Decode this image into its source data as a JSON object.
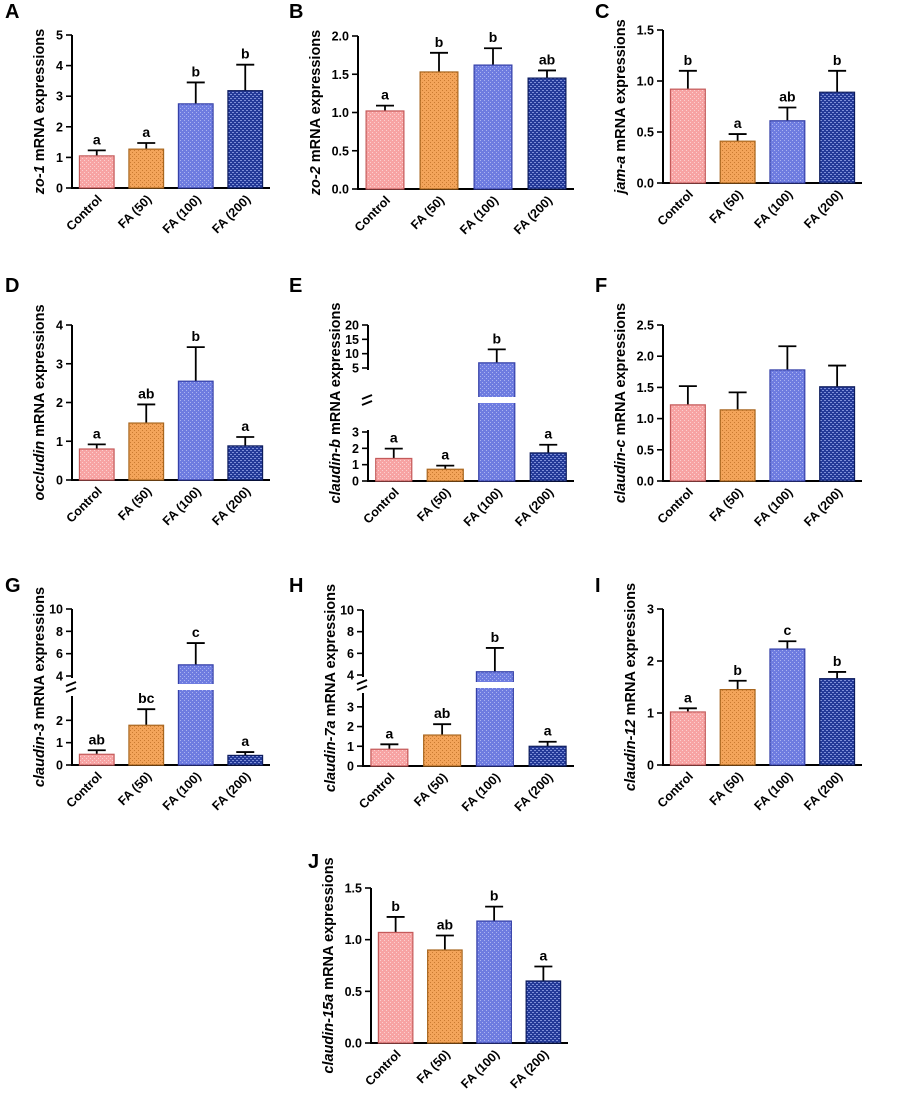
{
  "figure": {
    "colors": {
      "control": "#f7a3a3",
      "fa50": "#f3a45a",
      "fa100": "#6e7ce0",
      "fa200": "#243a98",
      "axis": "#000000"
    },
    "y_label_suffix": " mRNA expressions"
  },
  "chart_data": [
    {
      "id": "A",
      "letter": "A",
      "type": "bar",
      "gene": "zo-1",
      "categories": [
        "Control",
        "FA (50)",
        "FA (100)",
        "FA (200)"
      ],
      "values": [
        1.05,
        1.27,
        2.75,
        3.18
      ],
      "errors": [
        0.18,
        0.2,
        0.7,
        0.85
      ],
      "significance": [
        "a",
        "a",
        "b",
        "b"
      ],
      "ylim": [
        0,
        5
      ],
      "yticks": [
        0,
        1,
        2,
        3,
        4,
        5
      ],
      "ytick_labels": [
        "0",
        "1",
        "2",
        "3",
        "4",
        "5"
      ]
    },
    {
      "id": "B",
      "letter": "B",
      "type": "bar",
      "gene": "zo-2",
      "categories": [
        "Control",
        "FA (50)",
        "FA (100)",
        "FA (200)"
      ],
      "values": [
        1.02,
        1.53,
        1.62,
        1.45
      ],
      "errors": [
        0.07,
        0.25,
        0.22,
        0.1
      ],
      "significance": [
        "a",
        "b",
        "b",
        "ab"
      ],
      "ylim": [
        0,
        2
      ],
      "yticks": [
        0,
        0.5,
        1,
        1.5,
        2
      ],
      "ytick_labels": [
        "0.0",
        "0.5",
        "1.0",
        "1.5",
        "2.0"
      ]
    },
    {
      "id": "C",
      "letter": "C",
      "type": "bar",
      "gene": "jam-a",
      "categories": [
        "Control",
        "FA (50)",
        "FA (100)",
        "FA (200)"
      ],
      "values": [
        0.92,
        0.41,
        0.61,
        0.89
      ],
      "errors": [
        0.18,
        0.07,
        0.13,
        0.21
      ],
      "significance": [
        "b",
        "a",
        "ab",
        "b"
      ],
      "ylim": [
        0,
        1.5
      ],
      "yticks": [
        0,
        0.5,
        1,
        1.5
      ],
      "ytick_labels": [
        "0.0",
        "0.5",
        "1.0",
        "1.5"
      ]
    },
    {
      "id": "D",
      "letter": "D",
      "type": "bar",
      "gene": "occludin",
      "categories": [
        "Control",
        "FA (50)",
        "FA (100)",
        "FA (200)"
      ],
      "values": [
        0.8,
        1.47,
        2.55,
        0.88
      ],
      "errors": [
        0.12,
        0.48,
        0.88,
        0.23
      ],
      "significance": [
        "a",
        "ab",
        "b",
        "a"
      ],
      "ylim": [
        0,
        4
      ],
      "yticks": [
        0,
        1,
        2,
        3,
        4
      ],
      "ytick_labels": [
        "0",
        "1",
        "2",
        "3",
        "4"
      ]
    },
    {
      "id": "E",
      "letter": "E",
      "type": "bar",
      "gene": "claudin-b",
      "categories": [
        "Control",
        "FA (50)",
        "FA (100)",
        "FA (200)"
      ],
      "values": [
        1.38,
        0.72,
        6.8,
        1.72
      ],
      "errors": [
        0.6,
        0.22,
        4.7,
        0.5
      ],
      "significance": [
        "a",
        "a",
        "b",
        "a"
      ],
      "ylim": [
        0,
        20
      ],
      "broken_axis": {
        "lower": [
          0,
          3
        ],
        "upper": [
          5,
          20
        ]
      },
      "yticks": [
        0,
        1,
        2,
        3,
        5,
        10,
        15,
        20
      ],
      "ytick_labels": [
        "0",
        "1",
        "2",
        "3",
        "5",
        "10",
        "15",
        "20"
      ]
    },
    {
      "id": "F",
      "letter": "F",
      "type": "bar",
      "gene": "claudin-c",
      "categories": [
        "Control",
        "FA (50)",
        "FA (100)",
        "FA (200)"
      ],
      "values": [
        1.22,
        1.14,
        1.78,
        1.51
      ],
      "errors": [
        0.3,
        0.28,
        0.38,
        0.34
      ],
      "significance": [
        "",
        "",
        "",
        ""
      ],
      "ylim": [
        0,
        2.5
      ],
      "yticks": [
        0,
        0.5,
        1,
        1.5,
        2,
        2.5
      ],
      "ytick_labels": [
        "0.0",
        "0.5",
        "1.0",
        "1.5",
        "2.0",
        "2.5"
      ]
    },
    {
      "id": "G",
      "letter": "G",
      "type": "bar",
      "gene": "claudin-3",
      "categories": [
        "Control",
        "FA (50)",
        "FA (100)",
        "FA (200)"
      ],
      "values": [
        0.48,
        1.78,
        5.0,
        0.43
      ],
      "errors": [
        0.18,
        0.72,
        1.95,
        0.15
      ],
      "significance": [
        "ab",
        "bc",
        "c",
        "a"
      ],
      "ylim": [
        0,
        10
      ],
      "broken_axis": {
        "lower": [
          0,
          3
        ],
        "upper": [
          4,
          10
        ]
      },
      "yticks": [
        0,
        1,
        2,
        4,
        6,
        8,
        10
      ],
      "ytick_labels": [
        "0",
        "1",
        "2",
        "4",
        "6",
        "8",
        "10"
      ]
    },
    {
      "id": "H",
      "letter": "H",
      "type": "bar",
      "gene": "claudin-7a",
      "categories": [
        "Control",
        "FA (50)",
        "FA (100)",
        "FA (200)"
      ],
      "values": [
        0.85,
        1.57,
        4.3,
        1.0
      ],
      "errors": [
        0.25,
        0.55,
        2.2,
        0.23
      ],
      "significance": [
        "a",
        "ab",
        "b",
        "a"
      ],
      "ylim": [
        0,
        10
      ],
      "broken_axis": {
        "lower": [
          0,
          3.6
        ],
        "upper": [
          4,
          10
        ]
      },
      "yticks": [
        0,
        1,
        2,
        3,
        4,
        6,
        8,
        10
      ],
      "ytick_labels": [
        "0",
        "1",
        "2",
        "3",
        "4",
        "6",
        "8",
        "10"
      ]
    },
    {
      "id": "I",
      "letter": "I",
      "type": "bar",
      "gene": "claudin-12",
      "categories": [
        "Control",
        "FA (50)",
        "FA (100)",
        "FA (200)"
      ],
      "values": [
        1.02,
        1.45,
        2.23,
        1.66
      ],
      "errors": [
        0.07,
        0.17,
        0.15,
        0.13
      ],
      "significance": [
        "a",
        "b",
        "c",
        "b"
      ],
      "ylim": [
        0,
        3
      ],
      "yticks": [
        0,
        1,
        2,
        3
      ],
      "ytick_labels": [
        "0",
        "1",
        "2",
        "3"
      ]
    },
    {
      "id": "J",
      "letter": "J",
      "type": "bar",
      "gene": "claudin-15a",
      "categories": [
        "Control",
        "FA (50)",
        "FA (100)",
        "FA (200)"
      ],
      "values": [
        1.07,
        0.9,
        1.18,
        0.6
      ],
      "errors": [
        0.15,
        0.14,
        0.14,
        0.14
      ],
      "significance": [
        "b",
        "ab",
        "b",
        "a"
      ],
      "ylim": [
        0,
        1.5
      ],
      "yticks": [
        0,
        0.5,
        1,
        1.5
      ],
      "ytick_labels": [
        "0.0",
        "0.5",
        "1.0",
        "1.5"
      ]
    }
  ]
}
